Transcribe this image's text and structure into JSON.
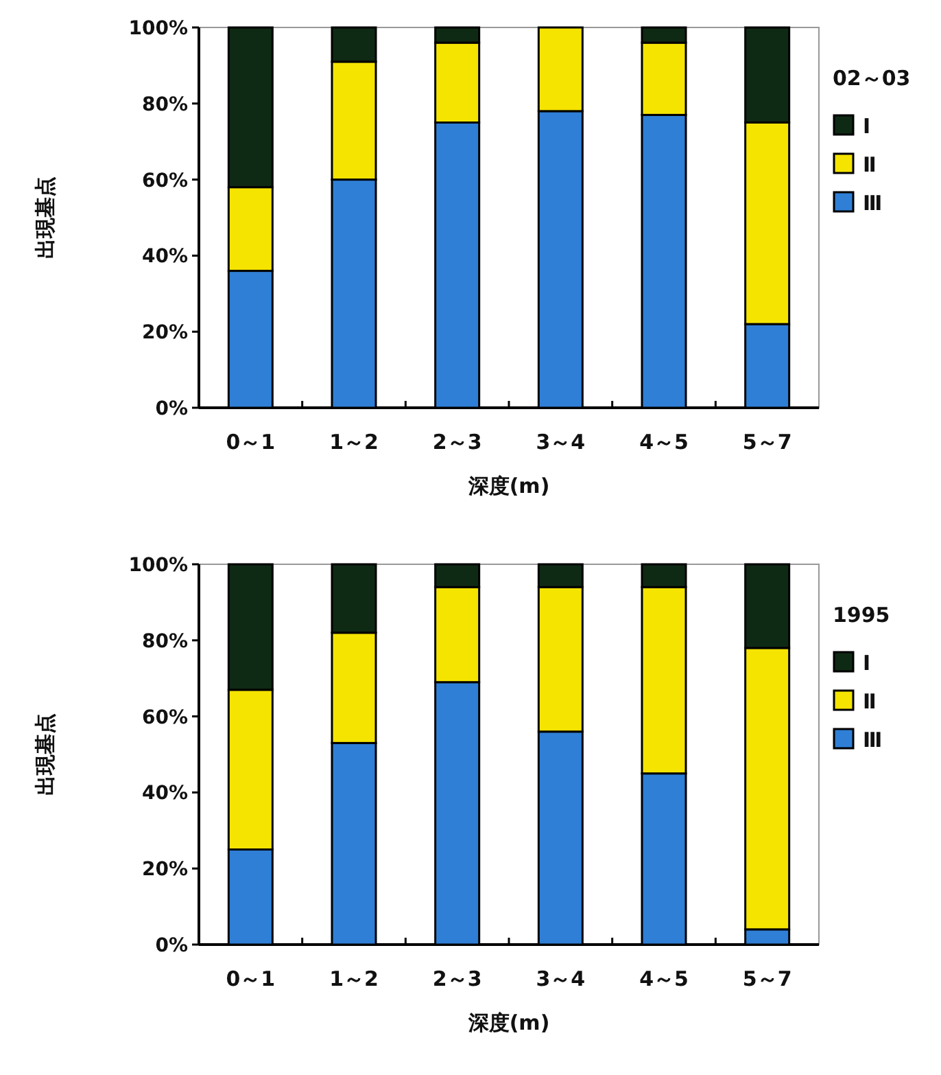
{
  "chart_data": [
    {
      "type": "bar",
      "stacked": true,
      "legend": "right",
      "legend_title": "02～03",
      "xlabel": "深度(m)",
      "ylabel": "出現基点",
      "categories": [
        "0～1",
        "1～2",
        "2～3",
        "3～4",
        "4～5",
        "5～7"
      ],
      "ylim": [
        0,
        100
      ],
      "yticks": [
        {
          "value": 0,
          "label": "0%"
        },
        {
          "value": 20,
          "label": "20%"
        },
        {
          "value": 40,
          "label": "40%"
        },
        {
          "value": 60,
          "label": "60%"
        },
        {
          "value": 80,
          "label": "80%"
        },
        {
          "value": 100,
          "label": "100%"
        }
      ],
      "series": [
        {
          "name": "Ⅲ",
          "color": "#2f7fd6",
          "values": [
            36,
            60,
            75,
            78,
            77,
            22
          ]
        },
        {
          "name": "Ⅱ",
          "color": "#f5e400",
          "values": [
            22,
            31,
            21,
            22,
            19,
            53
          ]
        },
        {
          "name": "Ⅰ",
          "color": "#0f2a14",
          "values": [
            42,
            9,
            4,
            0,
            4,
            25
          ]
        }
      ]
    },
    {
      "type": "bar",
      "stacked": true,
      "legend": "right",
      "legend_title": "1995",
      "xlabel": "深度(m)",
      "ylabel": "出現基点",
      "categories": [
        "0～1",
        "1～2",
        "2～3",
        "3～4",
        "4～5",
        "5～7"
      ],
      "ylim": [
        0,
        100
      ],
      "yticks": [
        {
          "value": 0,
          "label": "0%"
        },
        {
          "value": 20,
          "label": "20%"
        },
        {
          "value": 40,
          "label": "40%"
        },
        {
          "value": 60,
          "label": "60%"
        },
        {
          "value": 80,
          "label": "80%"
        },
        {
          "value": 100,
          "label": "100%"
        }
      ],
      "series": [
        {
          "name": "Ⅲ",
          "color": "#2f7fd6",
          "values": [
            25,
            53,
            69,
            56,
            45,
            4
          ]
        },
        {
          "name": "Ⅱ",
          "color": "#f5e400",
          "values": [
            42,
            29,
            25,
            38,
            49,
            74
          ]
        },
        {
          "name": "Ⅰ",
          "color": "#0f2a14",
          "values": [
            33,
            18,
            6,
            6,
            6,
            22
          ]
        }
      ]
    }
  ]
}
